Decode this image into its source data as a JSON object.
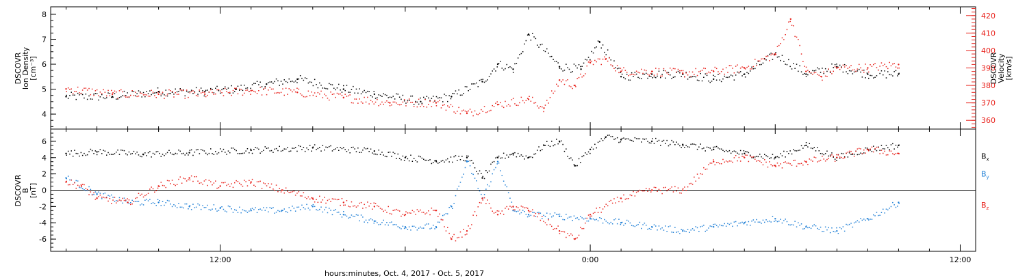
{
  "chart_data": [
    {
      "type": "scatter",
      "panel": "top",
      "ylabel_left": [
        "DSCOVR",
        "Ion Density",
        "[cm⁻³]"
      ],
      "ylabel_right": [
        "DSCOVR",
        "Velocity",
        "[km/s]"
      ],
      "ylim_left": [
        3.4,
        8.3
      ],
      "ylim_right": [
        355,
        425
      ],
      "yticks_left": [
        "4",
        "5",
        "6",
        "7",
        "8"
      ],
      "yticks_right": [
        "360",
        "370",
        "380",
        "390",
        "400",
        "410",
        "420"
      ],
      "axis_colors": {
        "left": "#000000",
        "right": "#e8201a"
      },
      "series": [
        {
          "axis": "left",
          "color": "#000000",
          "x": [
            7.0,
            8.5,
            10.0,
            11.5,
            12.5,
            13.5,
            14.5,
            16.0,
            17.0,
            18.5,
            19.5,
            20.5,
            21.0,
            21.5,
            22.0,
            23.0,
            23.7,
            24.3,
            25.0,
            26.0,
            27.0,
            28.0,
            29.0,
            30.0,
            31.0,
            32.0,
            33.0,
            34.0
          ],
          "y": [
            4.7,
            4.7,
            4.9,
            4.9,
            5.0,
            5.2,
            5.4,
            5.0,
            4.8,
            4.5,
            4.7,
            5.3,
            6.0,
            5.8,
            7.2,
            5.9,
            5.8,
            6.9,
            5.5,
            5.6,
            5.6,
            5.4,
            5.6,
            6.4,
            5.6,
            5.9,
            5.6,
            5.6
          ]
        },
        {
          "axis": "right",
          "color": "#e8201a",
          "x": [
            7.0,
            8.5,
            10.0,
            11.5,
            13.0,
            14.5,
            16.0,
            17.5,
            19.0,
            20.0,
            21.0,
            22.0,
            22.5,
            23.0,
            23.5,
            24.0,
            24.5,
            25.0,
            26.0,
            27.0,
            28.0,
            29.0,
            30.0,
            30.5,
            31.0,
            31.5,
            32.0,
            33.0,
            34.0
          ],
          "y": [
            378,
            375,
            375,
            375,
            377,
            376,
            373,
            370,
            370,
            364,
            369,
            372,
            367,
            383,
            380,
            393,
            395,
            388,
            388,
            387,
            388,
            390,
            398,
            418,
            388,
            385,
            390,
            390,
            392
          ]
        }
      ]
    },
    {
      "type": "scatter",
      "panel": "bottom",
      "ylabel": [
        "DSCOVR",
        "B",
        "[nT]"
      ],
      "ylim": [
        -7.5,
        7.5
      ],
      "yticks": [
        "-6",
        "-4",
        "-2",
        "0",
        "2",
        "4",
        "6"
      ],
      "zero_line": true,
      "legend": [
        "Bx",
        "By",
        "Bz"
      ],
      "series": [
        {
          "name": "Bx",
          "color": "#000000",
          "x": [
            7.0,
            8.0,
            9.5,
            11.0,
            13.0,
            15.0,
            17.0,
            18.0,
            19.0,
            20.0,
            20.5,
            21.0,
            21.5,
            22.0,
            22.5,
            23.0,
            23.5,
            24.0,
            24.5,
            25.0,
            26.0,
            27.0,
            28.0,
            29.0,
            30.0,
            31.0,
            32.0,
            33.0,
            34.0
          ],
          "y": [
            4.5,
            4.7,
            4.4,
            4.6,
            4.9,
            5.2,
            4.8,
            4.0,
            3.6,
            4.0,
            1.5,
            4.0,
            4.5,
            4.0,
            5.5,
            6.0,
            3.0,
            5.0,
            6.5,
            6.2,
            6.0,
            5.6,
            5.0,
            4.5,
            4.0,
            5.5,
            4.0,
            5.0,
            5.5
          ]
        },
        {
          "name": "By",
          "color": "#1f7fd6",
          "x": [
            7.0,
            8.0,
            9.0,
            10.0,
            11.0,
            12.0,
            13.0,
            14.0,
            15.0,
            16.0,
            17.0,
            18.0,
            19.0,
            19.5,
            20.0,
            20.5,
            21.0,
            21.5,
            22.0,
            23.0,
            24.0,
            25.0,
            26.0,
            27.0,
            28.0,
            29.0,
            30.0,
            31.0,
            32.0,
            33.0,
            34.0
          ],
          "y": [
            1.5,
            -0.5,
            -1.5,
            -1.5,
            -2.0,
            -2.2,
            -2.5,
            -2.5,
            -2.0,
            -3.0,
            -3.8,
            -4.5,
            -4.5,
            -2.0,
            3.5,
            -1.0,
            3.5,
            -2.5,
            -3.0,
            -3.2,
            -3.5,
            -4.0,
            -4.5,
            -5.0,
            -4.5,
            -4.0,
            -3.5,
            -4.5,
            -5.0,
            -3.5,
            -1.5
          ]
        },
        {
          "name": "Bz",
          "color": "#e8201a",
          "x": [
            7.0,
            7.5,
            8.0,
            9.0,
            10.0,
            11.0,
            12.0,
            13.0,
            14.0,
            15.0,
            16.0,
            17.0,
            18.0,
            19.0,
            19.5,
            20.0,
            20.5,
            21.0,
            21.5,
            22.0,
            23.0,
            23.5,
            24.0,
            25.0,
            26.0,
            27.0,
            28.0,
            29.0,
            30.0,
            31.0,
            32.0,
            33.0,
            34.0
          ],
          "y": [
            1.0,
            0.5,
            -1.0,
            -1.5,
            0.5,
            1.5,
            0.5,
            1.0,
            0.0,
            -1.0,
            -1.5,
            -2.0,
            -3.0,
            -2.5,
            -6.0,
            -5.0,
            -1.0,
            -3.0,
            -2.0,
            -2.5,
            -5.0,
            -6.0,
            -3.0,
            -1.0,
            0.0,
            0.0,
            3.5,
            4.0,
            3.0,
            3.5,
            4.0,
            5.0,
            4.5
          ]
        }
      ]
    }
  ],
  "x_axis": {
    "xlim": [
      6.5,
      36.5
    ],
    "tick_labels": [
      {
        "hour": 12,
        "label": "12:00"
      },
      {
        "hour": 24,
        "label": "0:00"
      },
      {
        "hour": 36,
        "label": "12:00"
      }
    ],
    "xlabel": "hours:minutes, Oct.  4, 2017 - Oct.  5, 2017"
  }
}
